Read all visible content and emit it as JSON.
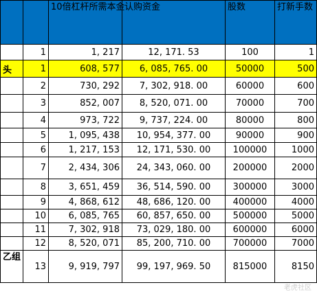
{
  "headers": [
    "",
    "10倍杠杆所需本金",
    "认购资金",
    "股数",
    "打新手数"
  ],
  "rows": [
    {
      "label": "",
      "idx": "1",
      "principal": "1, 217",
      "funds": "12, 171. 53",
      "shares": "100",
      "lots": "1",
      "highlight": false
    },
    {
      "label": "头",
      "idx": "1",
      "principal": "608, 577",
      "funds": "6, 085, 765. 00",
      "shares": "50000",
      "lots": "500",
      "highlight": true
    },
    {
      "label": "",
      "idx": "2",
      "principal": "730, 292",
      "funds": "7, 302, 918. 00",
      "shares": "60000",
      "lots": "600",
      "highlight": false
    },
    {
      "label": "",
      "idx": "3",
      "principal": "852, 007",
      "funds": "8, 520, 071. 00",
      "shares": "70000",
      "lots": "700",
      "highlight": false
    },
    {
      "label": "",
      "idx": "4",
      "principal": "973, 722",
      "funds": "9, 737, 224. 00",
      "shares": "80000",
      "lots": "800",
      "highlight": false
    },
    {
      "label": "",
      "idx": "5",
      "principal": "1, 095, 438",
      "funds": "10, 954, 377. 00",
      "shares": "90000",
      "lots": "900",
      "highlight": false
    },
    {
      "label": "",
      "idx": "6",
      "principal": "1, 217, 153",
      "funds": "12, 171, 530. 00",
      "shares": "100000",
      "lots": "1000",
      "highlight": false
    },
    {
      "label": "",
      "idx": "7",
      "principal": "2, 434, 306",
      "funds": "24, 343, 060. 00",
      "shares": "200000",
      "lots": "2000",
      "highlight": false
    },
    {
      "label": "",
      "idx": "8",
      "principal": "3, 651, 459",
      "funds": "36, 514, 590. 00",
      "shares": "300000",
      "lots": "3000",
      "highlight": false
    },
    {
      "label": "",
      "idx": "9",
      "principal": "4, 868, 612",
      "funds": "48, 686, 120. 00",
      "shares": "400000",
      "lots": "4000",
      "highlight": false
    },
    {
      "label": "",
      "idx": "10",
      "principal": "6, 085, 765",
      "funds": "60, 857, 650. 00",
      "shares": "500000",
      "lots": "5000",
      "highlight": false
    },
    {
      "label": "",
      "idx": "11",
      "principal": "7, 302, 918",
      "funds": "73, 029, 180. 00",
      "shares": "600000",
      "lots": "6000",
      "highlight": false
    },
    {
      "label": "",
      "idx": "12",
      "principal": "8, 520, 071",
      "funds": "85, 200, 710. 00",
      "shares": "700000",
      "lots": "7000",
      "highlight": false
    },
    {
      "label": "乙组",
      "idx": "13",
      "principal": "9, 919, 797",
      "funds": "99, 197, 969. 50",
      "shares": "815000",
      "lots": "8150",
      "highlight": false
    }
  ],
  "colors": {
    "header_bg": "#0070c0",
    "highlight": "#ffff00"
  },
  "watermark": "老虎社区"
}
